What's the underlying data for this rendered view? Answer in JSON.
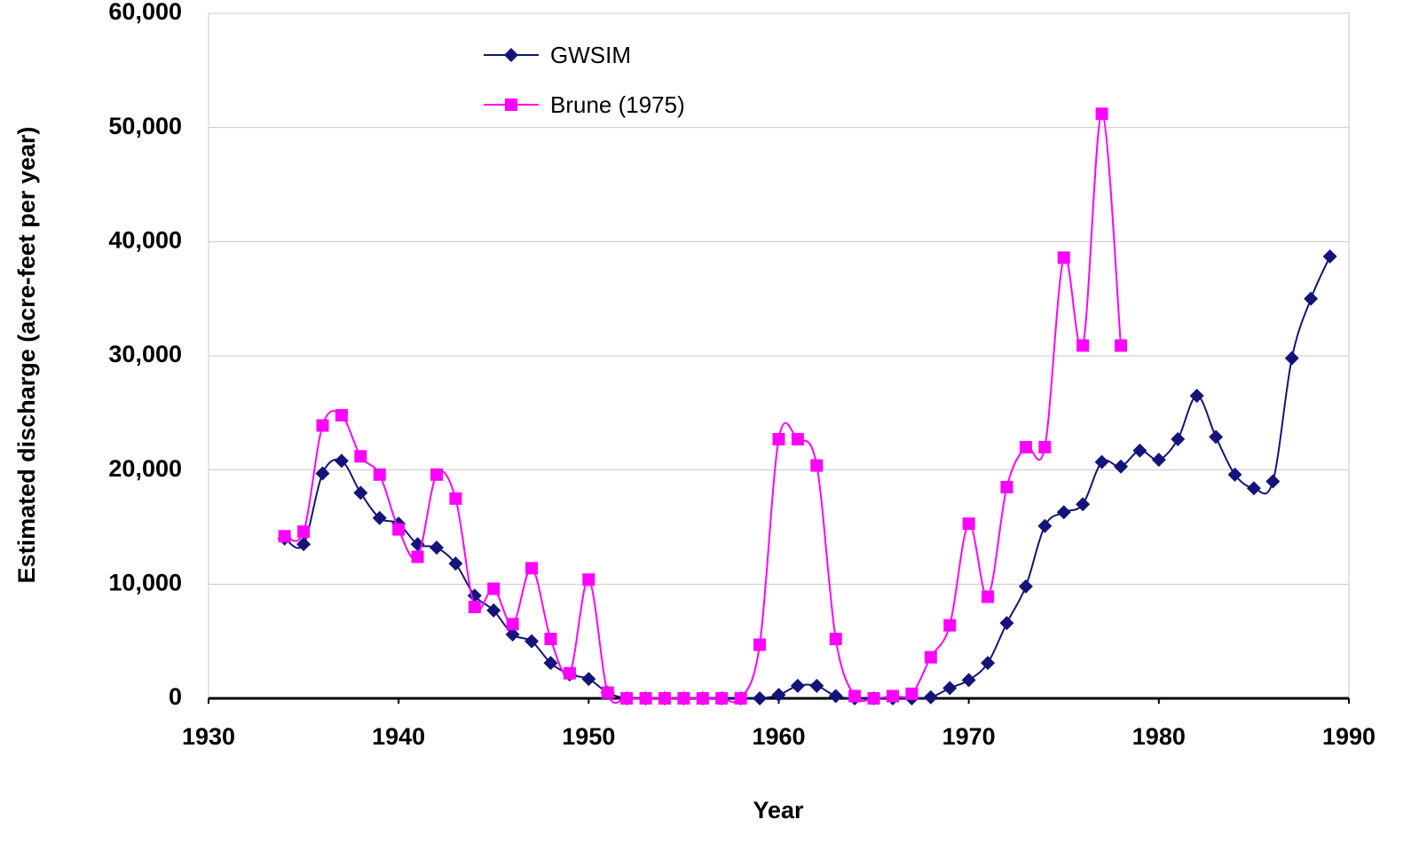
{
  "chart_data": {
    "type": "line",
    "x_label": "Year",
    "y_label": "Estimated discharge (acre-feet per year)",
    "xlim": [
      1930,
      1990
    ],
    "xticks": [
      1930,
      1940,
      1950,
      1960,
      1970,
      1980,
      1990
    ],
    "ylim": [
      0,
      60000
    ],
    "yticks": [
      0,
      {
        "value": 10000,
        "label": "10,000"
      },
      {
        "value": 20000,
        "label": "20,000"
      },
      {
        "value": 30000,
        "label": "30,000"
      },
      {
        "value": 40000,
        "label": "40,000"
      },
      {
        "value": 50000,
        "label": "50,000"
      },
      {
        "value": 60000,
        "label": "60,000"
      }
    ],
    "grid": true,
    "legend": "top-left",
    "series": [
      {
        "name": "GWSIM",
        "color": "#13137a",
        "marker": "diamond",
        "x": [
          1934,
          1935,
          1936,
          1937,
          1938,
          1939,
          1940,
          1941,
          1942,
          1943,
          1944,
          1945,
          1946,
          1947,
          1948,
          1949,
          1950,
          1951,
          1952,
          1953,
          1954,
          1955,
          1956,
          1957,
          1958,
          1959,
          1960,
          1961,
          1962,
          1963,
          1964,
          1965,
          1966,
          1967,
          1968,
          1969,
          1970,
          1971,
          1972,
          1973,
          1974,
          1975,
          1976,
          1977,
          1978,
          1979,
          1980,
          1981,
          1982,
          1983,
          1984,
          1985,
          1986,
          1987,
          1988,
          1989
        ],
        "values": [
          14000,
          13500,
          19700,
          20800,
          18000,
          15800,
          15300,
          13500,
          13200,
          11800,
          9000,
          7700,
          5600,
          5000,
          3100,
          2100,
          1700,
          500,
          0,
          0,
          0,
          0,
          0,
          0,
          0,
          0,
          300,
          1100,
          1100,
          200,
          0,
          0,
          0,
          0,
          100,
          900,
          1600,
          3100,
          6600,
          9800,
          15100,
          16300,
          17000,
          20700,
          20300,
          21700,
          20900,
          22700,
          26500,
          22900,
          19600,
          18400,
          19000,
          29800,
          35000,
          38700
        ]
      },
      {
        "name": "Brune (1975)",
        "color": "#ff00ff",
        "marker": "square",
        "x": [
          1934,
          1935,
          1936,
          1937,
          1938,
          1939,
          1940,
          1941,
          1942,
          1943,
          1944,
          1945,
          1946,
          1947,
          1948,
          1949,
          1950,
          1951,
          1952,
          1953,
          1954,
          1955,
          1956,
          1957,
          1958,
          1959,
          1960,
          1961,
          1962,
          1963,
          1964,
          1965,
          1966,
          1967,
          1968,
          1969,
          1970,
          1971,
          1972,
          1973,
          1974,
          1975,
          1976,
          1977,
          1978
        ],
        "values": [
          14200,
          14600,
          23900,
          24800,
          21200,
          19600,
          14800,
          12400,
          19600,
          17500,
          8000,
          9600,
          6500,
          11400,
          5200,
          2200,
          10400,
          500,
          0,
          0,
          0,
          0,
          0,
          0,
          0,
          4700,
          22700,
          22700,
          20400,
          5200,
          200,
          0,
          200,
          400,
          3600,
          6400,
          15300,
          8900,
          18500,
          22000,
          22000,
          38600,
          30900,
          51200,
          30900
        ]
      }
    ]
  }
}
